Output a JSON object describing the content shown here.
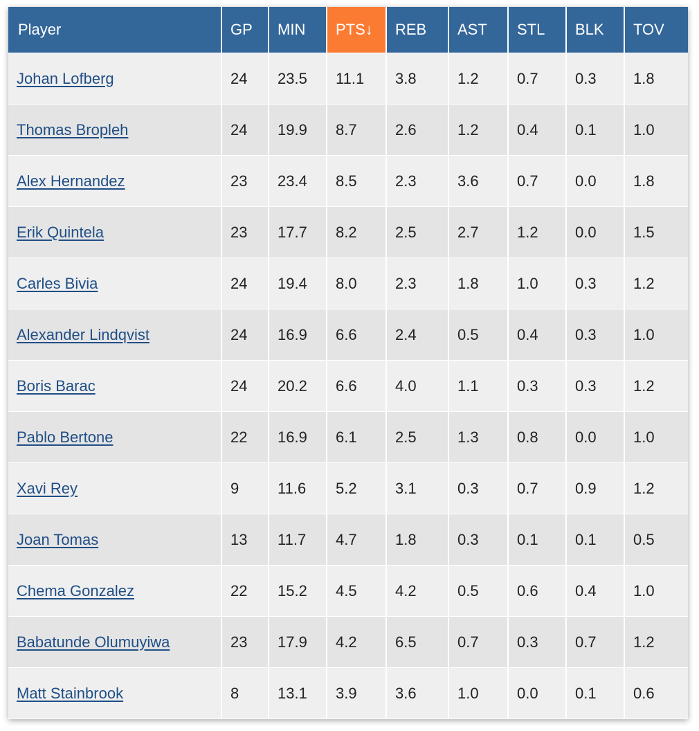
{
  "table": {
    "sorted_column": "pts",
    "headers": {
      "player": "Player",
      "gp": "GP",
      "min": "MIN",
      "pts": "PTS↓",
      "reb": "REB",
      "ast": "AST",
      "stl": "STL",
      "blk": "BLK",
      "tov": "TOV"
    },
    "colors": {
      "header_bg": "#336699",
      "sorted_header_bg": "#fc7b32",
      "link": "#1f4e86",
      "row_light": "#efefef",
      "row_dark": "#e4e4e4"
    },
    "rows": [
      {
        "player": "Johan Lofberg",
        "gp": "24",
        "min": "23.5",
        "pts": "11.1",
        "reb": "3.8",
        "ast": "1.2",
        "stl": "0.7",
        "blk": "0.3",
        "tov": "1.8"
      },
      {
        "player": "Thomas Bropleh",
        "gp": "24",
        "min": "19.9",
        "pts": "8.7",
        "reb": "2.6",
        "ast": "1.2",
        "stl": "0.4",
        "blk": "0.1",
        "tov": "1.0"
      },
      {
        "player": "Alex Hernandez",
        "gp": "23",
        "min": "23.4",
        "pts": "8.5",
        "reb": "2.3",
        "ast": "3.6",
        "stl": "0.7",
        "blk": "0.0",
        "tov": "1.8"
      },
      {
        "player": "Erik Quintela",
        "gp": "23",
        "min": "17.7",
        "pts": "8.2",
        "reb": "2.5",
        "ast": "2.7",
        "stl": "1.2",
        "blk": "0.0",
        "tov": "1.5"
      },
      {
        "player": "Carles Bivia",
        "gp": "24",
        "min": "19.4",
        "pts": "8.0",
        "reb": "2.3",
        "ast": "1.8",
        "stl": "1.0",
        "blk": "0.3",
        "tov": "1.2"
      },
      {
        "player": "Alexander Lindqvist",
        "gp": "24",
        "min": "16.9",
        "pts": "6.6",
        "reb": "2.4",
        "ast": "0.5",
        "stl": "0.4",
        "blk": "0.3",
        "tov": "1.0"
      },
      {
        "player": "Boris Barac",
        "gp": "24",
        "min": "20.2",
        "pts": "6.6",
        "reb": "4.0",
        "ast": "1.1",
        "stl": "0.3",
        "blk": "0.3",
        "tov": "1.2"
      },
      {
        "player": "Pablo Bertone",
        "gp": "22",
        "min": "16.9",
        "pts": "6.1",
        "reb": "2.5",
        "ast": "1.3",
        "stl": "0.8",
        "blk": "0.0",
        "tov": "1.0"
      },
      {
        "player": "Xavi Rey",
        "gp": "9",
        "min": "11.6",
        "pts": "5.2",
        "reb": "3.1",
        "ast": "0.3",
        "stl": "0.7",
        "blk": "0.9",
        "tov": "1.2"
      },
      {
        "player": "Joan Tomas",
        "gp": "13",
        "min": "11.7",
        "pts": "4.7",
        "reb": "1.8",
        "ast": "0.3",
        "stl": "0.1",
        "blk": "0.1",
        "tov": "0.5"
      },
      {
        "player": "Chema Gonzalez",
        "gp": "22",
        "min": "15.2",
        "pts": "4.5",
        "reb": "4.2",
        "ast": "0.5",
        "stl": "0.6",
        "blk": "0.4",
        "tov": "1.0"
      },
      {
        "player": "Babatunde Olumuyiwa",
        "gp": "23",
        "min": "17.9",
        "pts": "4.2",
        "reb": "6.5",
        "ast": "0.7",
        "stl": "0.3",
        "blk": "0.7",
        "tov": "1.2"
      },
      {
        "player": "Matt Stainbrook",
        "gp": "8",
        "min": "13.1",
        "pts": "3.9",
        "reb": "3.6",
        "ast": "1.0",
        "stl": "0.0",
        "blk": "0.1",
        "tov": "0.6"
      }
    ]
  }
}
